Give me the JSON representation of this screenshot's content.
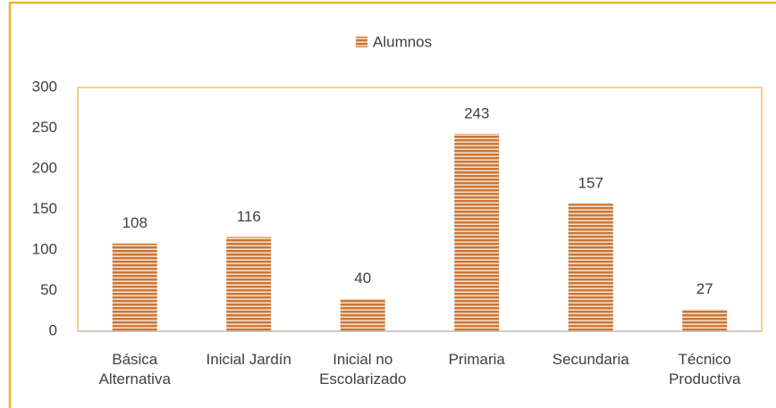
{
  "chart_data": {
    "type": "bar",
    "legend": "top",
    "categories": [
      "Básica Alternativa",
      "Inicial Jardín",
      "Inicial no Escolarizado",
      "Primaria",
      "Secundaria",
      "Técnico Productiva"
    ],
    "series": [
      {
        "name": "Alumnos",
        "color": "#c8773a",
        "values": [
          108,
          116,
          40,
          243,
          157,
          27
        ]
      }
    ],
    "ylim": [
      0,
      300
    ],
    "yticks": [
      0,
      50,
      100,
      150,
      200,
      250,
      300
    ],
    "grid": false
  }
}
